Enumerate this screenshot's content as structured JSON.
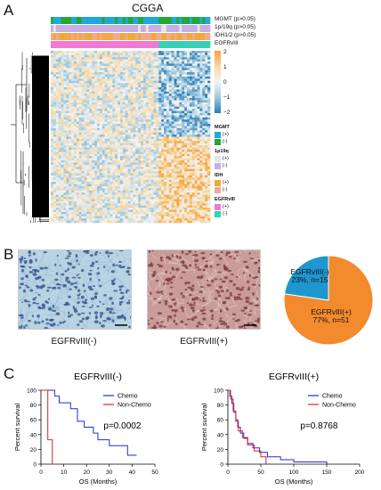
{
  "panels": {
    "a": "A",
    "b": "B",
    "c": "C"
  },
  "heatmap": {
    "title": "CGGA",
    "annotation_labels": [
      "MGMT (p>0.05)",
      "1p/19q (p>0.05)",
      "IDH1/2 (p>0.05)",
      "EGFRvIII"
    ],
    "colorbar_ticks": [
      "2",
      "1",
      "0",
      "−1",
      "−2"
    ],
    "legend": [
      {
        "title": "MGMT",
        "items": [
          {
            "label": "(+)",
            "color": "#1ea8dc"
          },
          {
            "label": "(-)",
            "color": "#22a832"
          }
        ]
      },
      {
        "title": "1p19q",
        "items": [
          {
            "label": "(+)",
            "color": "#e6e6e6"
          },
          {
            "label": "(-)",
            "color": "#c9aee6"
          }
        ]
      },
      {
        "title": "IDH",
        "items": [
          {
            "label": "(+)",
            "color": "#f0a83a"
          },
          {
            "label": "(-)",
            "color": "#f2a98e"
          }
        ]
      },
      {
        "title": "EGFRvIII",
        "items": [
          {
            "label": "(+)",
            "color": "#f07ad2"
          },
          {
            "label": "(-)",
            "color": "#35d1b7"
          }
        ]
      }
    ]
  },
  "micrographs": {
    "neg_caption": "EGFRvIII(-)",
    "pos_caption": "EGFRvIII(+)"
  },
  "chart_data": [
    {
      "type": "pie",
      "title": "",
      "slices": [
        {
          "label": "EGFRvIII(-)",
          "text": "23%, n=15",
          "value": 15,
          "color": "#1e96d0"
        },
        {
          "label": "EGFRvIII(+)",
          "text": "77%, n=51",
          "value": 51,
          "color": "#f28a2e"
        }
      ]
    },
    {
      "type": "line",
      "title": "EGFRvIII(-)",
      "xlabel": "OS (Months)",
      "ylabel": "Percent survival",
      "xlim": [
        0,
        50
      ],
      "ylim": [
        0,
        100
      ],
      "xticks": [
        0,
        10,
        20,
        30,
        40,
        50
      ],
      "yticks": [
        0,
        20,
        40,
        60,
        80,
        100
      ],
      "legend": "top-right",
      "pvalue": "p=0.0002",
      "series": [
        {
          "name": "Chemo",
          "color": "#1f2ed6",
          "steps": [
            [
              0,
              100
            ],
            [
              6,
              100
            ],
            [
              6,
              92
            ],
            [
              8,
              92
            ],
            [
              8,
              83
            ],
            [
              13,
              83
            ],
            [
              13,
              75
            ],
            [
              16,
              75
            ],
            [
              16,
              58
            ],
            [
              19,
              58
            ],
            [
              19,
              50
            ],
            [
              23,
              50
            ],
            [
              23,
              42
            ],
            [
              25,
              42
            ],
            [
              25,
              33
            ],
            [
              30,
              33
            ],
            [
              30,
              25
            ],
            [
              38,
              25
            ],
            [
              38,
              12
            ],
            [
              42,
              12
            ]
          ]
        },
        {
          "name": "Non-Chemo",
          "color": "#e02020",
          "steps": [
            [
              0,
              100
            ],
            [
              3,
              100
            ],
            [
              3,
              33
            ],
            [
              5,
              33
            ],
            [
              5,
              0
            ],
            [
              6,
              0
            ]
          ]
        }
      ]
    },
    {
      "type": "line",
      "title": "EGFRvIII(+)",
      "xlabel": "OS (Months)",
      "ylabel": "Percent survival",
      "xlim": [
        0,
        200
      ],
      "ylim": [
        0,
        100
      ],
      "xticks": [
        0,
        50,
        100,
        150,
        200
      ],
      "yticks": [
        0,
        20,
        40,
        60,
        80,
        100
      ],
      "legend": "top-right",
      "pvalue": "p=0.8768",
      "series": [
        {
          "name": "Chemo",
          "color": "#1f2ed6",
          "steps": [
            [
              0,
              100
            ],
            [
              3,
              100
            ],
            [
              3,
              92
            ],
            [
              6,
              92
            ],
            [
              6,
              82
            ],
            [
              9,
              82
            ],
            [
              9,
              70
            ],
            [
              12,
              70
            ],
            [
              12,
              60
            ],
            [
              15,
              60
            ],
            [
              15,
              50
            ],
            [
              19,
              50
            ],
            [
              19,
              42
            ],
            [
              24,
              42
            ],
            [
              24,
              35
            ],
            [
              30,
              35
            ],
            [
              30,
              28
            ],
            [
              38,
              28
            ],
            [
              38,
              22
            ],
            [
              48,
              22
            ],
            [
              48,
              16
            ],
            [
              60,
              16
            ],
            [
              60,
              10
            ],
            [
              80,
              10
            ],
            [
              80,
              6
            ],
            [
              100,
              6
            ],
            [
              100,
              3
            ],
            [
              150,
              3
            ],
            [
              150,
              0
            ]
          ]
        },
        {
          "name": "Non-Chemo",
          "color": "#e02020",
          "steps": [
            [
              0,
              100
            ],
            [
              4,
              100
            ],
            [
              4,
              88
            ],
            [
              8,
              88
            ],
            [
              8,
              72
            ],
            [
              12,
              72
            ],
            [
              12,
              58
            ],
            [
              16,
              58
            ],
            [
              16,
              45
            ],
            [
              22,
              45
            ],
            [
              22,
              36
            ],
            [
              30,
              36
            ],
            [
              30,
              26
            ],
            [
              40,
              26
            ],
            [
              40,
              18
            ],
            [
              50,
              18
            ],
            [
              50,
              10
            ],
            [
              58,
              10
            ],
            [
              58,
              0
            ]
          ]
        }
      ]
    }
  ]
}
